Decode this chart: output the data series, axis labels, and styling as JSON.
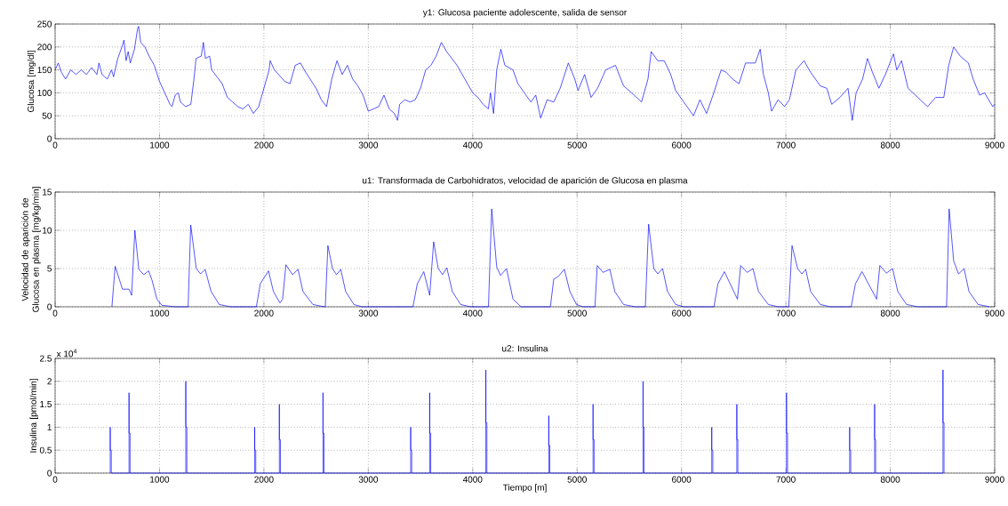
{
  "chart_data": [
    {
      "type": "line",
      "title": "y1: Glucosa paciente adolescente, salida de sensor",
      "ylabel": "Glucosa [mg/dl]",
      "color": "#0000ff",
      "grid": true,
      "xlim": [
        0,
        9000
      ],
      "ylim": [
        0,
        250
      ],
      "xticks": [
        0,
        1000,
        2000,
        3000,
        4000,
        5000,
        6000,
        7000,
        8000,
        9000
      ],
      "yticks": [
        0,
        50,
        100,
        150,
        200,
        250
      ],
      "x": [
        0,
        30,
        60,
        100,
        150,
        200,
        250,
        300,
        350,
        400,
        420,
        450,
        500,
        540,
        560,
        600,
        640,
        660,
        680,
        700,
        720,
        760,
        790,
        800,
        820,
        860,
        900,
        950,
        1000,
        1050,
        1100,
        1120,
        1150,
        1180,
        1200,
        1250,
        1300,
        1330,
        1350,
        1400,
        1420,
        1440,
        1480,
        1500,
        1550,
        1600,
        1650,
        1700,
        1750,
        1800,
        1850,
        1900,
        1950,
        2000,
        2050,
        2060,
        2100,
        2200,
        2250,
        2300,
        2350,
        2400,
        2500,
        2550,
        2600,
        2650,
        2700,
        2750,
        2800,
        2850,
        2900,
        2950,
        3000,
        3050,
        3100,
        3150,
        3200,
        3250,
        3280,
        3300,
        3350,
        3400,
        3450,
        3500,
        3550,
        3600,
        3650,
        3700,
        3750,
        3800,
        3850,
        3900,
        4000,
        4050,
        4100,
        4150,
        4170,
        4200,
        4230,
        4270,
        4308,
        4386,
        4433,
        4495,
        4558,
        4604,
        4651,
        4713,
        4776,
        4838,
        4916,
        4978,
        5009,
        5072,
        5134,
        5196,
        5274,
        5368,
        5445,
        5523,
        5617,
        5679,
        5710,
        5772,
        5835,
        5897,
        5944,
        6022,
        6115,
        6177,
        6240,
        6302,
        6380,
        6427,
        6490,
        6551,
        6614,
        6707,
        6754,
        6785,
        6832,
        6863,
        6925,
        6988,
        7034,
        7096,
        7174,
        7236,
        7330,
        7392,
        7439,
        7517,
        7595,
        7636,
        7673,
        7735,
        7782,
        7829,
        7891,
        7953,
        8031,
        8062,
        8108,
        8170,
        8264,
        8357,
        8435,
        8513,
        8560,
        8607,
        8670,
        8748,
        8794,
        8856,
        8903,
        8981,
        9000
      ],
      "values": [
        150,
        165,
        145,
        130,
        150,
        140,
        150,
        140,
        155,
        140,
        165,
        140,
        130,
        150,
        135,
        175,
        200,
        215,
        170,
        190,
        165,
        195,
        240,
        245,
        210,
        200,
        180,
        160,
        125,
        100,
        75,
        70,
        95,
        100,
        80,
        70,
        75,
        130,
        175,
        180,
        210,
        175,
        180,
        150,
        135,
        120,
        90,
        80,
        70,
        65,
        75,
        55,
        70,
        110,
        150,
        170,
        150,
        125,
        120,
        160,
        165,
        145,
        110,
        85,
        70,
        130,
        170,
        140,
        160,
        130,
        115,
        95,
        60,
        65,
        70,
        95,
        65,
        55,
        40,
        75,
        85,
        80,
        85,
        110,
        150,
        160,
        180,
        210,
        190,
        175,
        160,
        140,
        100,
        90,
        75,
        65,
        100,
        55,
        150,
        195,
        160,
        150,
        120,
        100,
        80,
        95,
        45,
        85,
        80,
        110,
        165,
        130,
        105,
        140,
        90,
        110,
        150,
        160,
        115,
        100,
        80,
        130,
        190,
        170,
        170,
        140,
        105,
        80,
        50,
        85,
        55,
        95,
        150,
        145,
        130,
        120,
        165,
        165,
        195,
        140,
        100,
        60,
        85,
        70,
        85,
        150,
        170,
        145,
        115,
        110,
        75,
        90,
        110,
        40,
        100,
        130,
        175,
        145,
        110,
        140,
        185,
        150,
        170,
        110,
        90,
        70,
        90,
        90,
        160,
        200,
        180,
        165,
        130,
        95,
        100,
        70,
        75
      ]
    },
    {
      "type": "line",
      "title": "u1: Transformada de Carbohidratos, velocidad de aparición de Glucosa en plasma",
      "ylabel": "Velocidad de aparición de Glucosa en plasma [mg/kg/min]",
      "color": "#0000ff",
      "grid": true,
      "xlim": [
        0,
        9000
      ],
      "ylim": [
        0,
        15
      ],
      "xticks": [
        0,
        1000,
        2000,
        3000,
        4000,
        5000,
        6000,
        7000,
        8000,
        9000
      ],
      "yticks": [
        0,
        5,
        10,
        15
      ],
      "x": [
        544,
        575,
        645,
        708,
        733,
        764,
        802,
        849,
        896,
        928,
        975,
        1022,
        1148,
        1274,
        1299,
        1352,
        1393,
        1437,
        1494,
        1572,
        1682,
        1928,
        1965,
        1997,
        2044,
        2091,
        2154,
        2179,
        2211,
        2274,
        2327,
        2374,
        2469,
        2579,
        2588,
        2613,
        2657,
        2695,
        2736,
        2783,
        2862,
        2940,
        3428,
        3469,
        3531,
        3588,
        3626,
        3670,
        3711,
        3752,
        3805,
        3884,
        3978,
        4151,
        4182,
        4230,
        4267,
        4324,
        4386,
        4464,
        4744,
        4776,
        4822,
        4878,
        4931,
        4994,
        5056,
        5171,
        5193,
        5249,
        5314,
        5361,
        5445,
        5554,
        5654,
        5685,
        5735,
        5773,
        5819,
        5866,
        5944,
        6022,
        6311,
        6349,
        6411,
        6536,
        6567,
        6629,
        6685,
        6738,
        6832,
        6925,
        7028,
        7059,
        7112,
        7153,
        7190,
        7237,
        7330,
        7424,
        7626,
        7666,
        7729,
        7869,
        7900,
        7963,
        8022,
        8072,
        8156,
        8265,
        8539,
        8564,
        8607,
        8654,
        8707,
        8754,
        8841,
        8950
      ],
      "values": [
        0,
        5.3,
        2.3,
        2.3,
        1.5,
        10,
        4.9,
        4.2,
        4.7,
        3.5,
        1,
        0.2,
        0,
        0,
        10.7,
        5,
        4.3,
        4.9,
        2,
        0.3,
        0,
        0,
        3,
        3.7,
        4.7,
        2,
        0.5,
        1,
        5.5,
        4.2,
        4.9,
        2,
        0.3,
        0,
        0,
        8,
        5,
        4.2,
        4.9,
        2,
        0.3,
        0,
        0,
        3,
        4.6,
        1.5,
        8.5,
        5,
        4.2,
        5.1,
        2,
        0.3,
        0,
        0,
        12.8,
        5.2,
        4.1,
        5,
        1,
        0,
        0,
        3.6,
        4,
        4.9,
        2,
        0.3,
        0,
        0,
        5.4,
        4.5,
        4.9,
        2,
        0.3,
        0,
        0,
        10.8,
        5,
        4.3,
        5,
        2,
        0.3,
        0,
        0,
        3,
        4.6,
        1,
        5.4,
        4.5,
        5,
        2,
        0.3,
        0,
        0,
        8,
        5,
        4.3,
        4.9,
        2,
        0.3,
        0,
        0,
        3,
        4.6,
        1,
        5.4,
        4.4,
        5,
        2,
        0.3,
        0,
        0,
        12.8,
        6,
        4.3,
        5,
        2,
        0.3,
        0
      ]
    },
    {
      "type": "line",
      "title": "u2: Insulina",
      "xlabel": "Tiempo [m]",
      "ylabel": "Insulina [pmol/min]",
      "annotations": [
        "x 10$^{4}$"
      ],
      "color": "#0000ff",
      "grid": true,
      "xlim": [
        0,
        9000
      ],
      "ylim": [
        0,
        2.5
      ],
      "xticks": [
        0,
        1000,
        2000,
        3000,
        4000,
        5000,
        6000,
        7000,
        8000,
        9000
      ],
      "yticks": [
        0,
        0.5,
        1,
        1.5,
        2,
        2.5
      ],
      "x": [
        528,
        528,
        528,
        538,
        538,
        708,
        708,
        708,
        718,
        718,
        1252,
        1252,
        1252,
        1262,
        1262,
        1912,
        1912,
        1912,
        1922,
        1922,
        2148,
        2148,
        2148,
        2158,
        2158,
        2566,
        2566,
        2566,
        2576,
        2576,
        3406,
        3406,
        3406,
        3416,
        3416,
        3588,
        3588,
        3588,
        3598,
        3598,
        4126,
        4126,
        4126,
        4136,
        4136,
        4729,
        4729,
        4729,
        4739,
        4739,
        5153,
        5153,
        5153,
        5163,
        5163,
        5632,
        5632,
        5632,
        5642,
        5642,
        6290,
        6290,
        6290,
        6300,
        6300,
        6530,
        6530,
        6530,
        6540,
        6540,
        7006,
        7006,
        7006,
        7016,
        7016,
        7611,
        7611,
        7611,
        7621,
        7621,
        7850,
        7850,
        7850,
        7860,
        7860,
        8505,
        8505,
        8505,
        8515,
        8515
      ],
      "values": [
        0,
        1,
        0.5,
        0.5,
        0,
        0,
        1.75,
        0.87,
        0.87,
        0,
        0,
        2,
        1,
        1,
        0,
        0,
        1,
        0.5,
        0.5,
        0,
        0,
        1.5,
        0.73,
        0.73,
        0,
        0,
        1.75,
        0.87,
        0.87,
        0,
        0,
        1,
        0.5,
        0.5,
        0,
        0,
        1.75,
        0.87,
        0.87,
        0,
        0,
        2.25,
        1.1,
        1.1,
        0,
        0,
        1.25,
        0.6,
        0.6,
        0,
        0,
        1.5,
        0.73,
        0.73,
        0,
        0,
        2,
        1,
        1,
        0,
        0,
        1,
        0.5,
        0.5,
        0,
        0,
        1.5,
        0.73,
        0.73,
        0,
        0,
        1.75,
        0.87,
        0.87,
        0,
        0,
        1,
        0.5,
        0.5,
        0,
        0,
        1.5,
        0.73,
        0.73,
        0,
        0,
        2.25,
        1.1,
        1.1,
        0
      ]
    }
  ]
}
